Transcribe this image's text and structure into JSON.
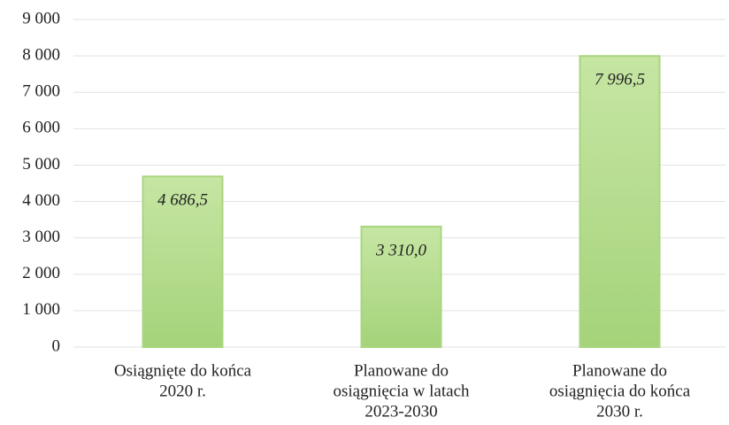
{
  "chart_data": {
    "type": "bar",
    "categories": [
      [
        "Osiągnięte do końca",
        "2020 r."
      ],
      [
        "Planowane do",
        "osiągnięcia w latach",
        "2023-2030"
      ],
      [
        "Planowane do",
        "osiągnięcia do końca",
        "2030 r."
      ]
    ],
    "values": [
      4686.5,
      3310.0,
      7996.5
    ],
    "value_labels": [
      "4 686,5",
      "3 310,0",
      "7 996,5"
    ],
    "color": "#a9d57f",
    "ylim": [
      0,
      9000
    ],
    "yticks": [
      0,
      {
        "value": 1000,
        "label": "1 000"
      },
      {
        "value": 2000,
        "label": "2 000"
      },
      {
        "value": 3000,
        "label": "3 000"
      },
      {
        "value": 4000,
        "label": "4 000"
      },
      {
        "value": 5000,
        "label": "5 000"
      },
      {
        "value": 6000,
        "label": "6 000"
      },
      {
        "value": 7000,
        "label": "7 000"
      },
      {
        "value": 8000,
        "label": "8 000"
      },
      {
        "value": 9000,
        "label": "9 000"
      }
    ],
    "grid": true
  }
}
